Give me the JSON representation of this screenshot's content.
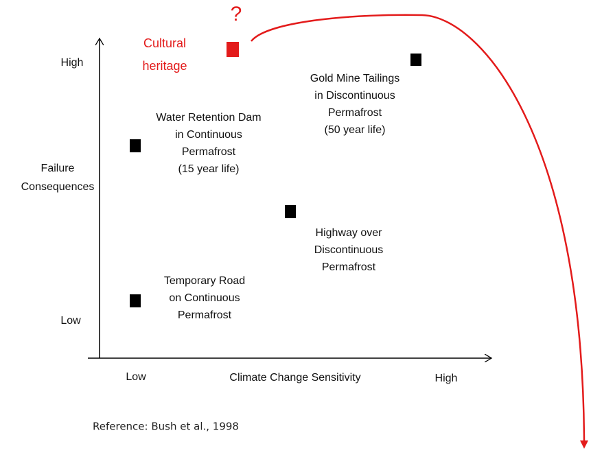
{
  "y_axis": {
    "title_lines": [
      "Failure",
      "Consequences"
    ],
    "high": "High",
    "low": "Low"
  },
  "x_axis": {
    "title": "Climate Change Sensitivity",
    "low": "Low",
    "high": "High"
  },
  "nodes": [
    {
      "label_lines": [
        "Cultural",
        "heritage"
      ]
    },
    {
      "label_lines": [
        "Gold Mine Tailings",
        "in Discontinuous",
        "Permafrost",
        "(50 year life)"
      ]
    },
    {
      "label_lines": [
        "Water Retention Dam",
        "in Continuous",
        "Permafrost",
        "(15 year life)"
      ]
    },
    {
      "label_lines": [
        "Highway over",
        "Discontinuous",
        "Permafrost"
      ]
    },
    {
      "label_lines": [
        "Temporary Road",
        "on Continuous",
        "Permafrost"
      ]
    }
  ],
  "annotation": "?",
  "reference": "Reference: Bush et al., 1998"
}
